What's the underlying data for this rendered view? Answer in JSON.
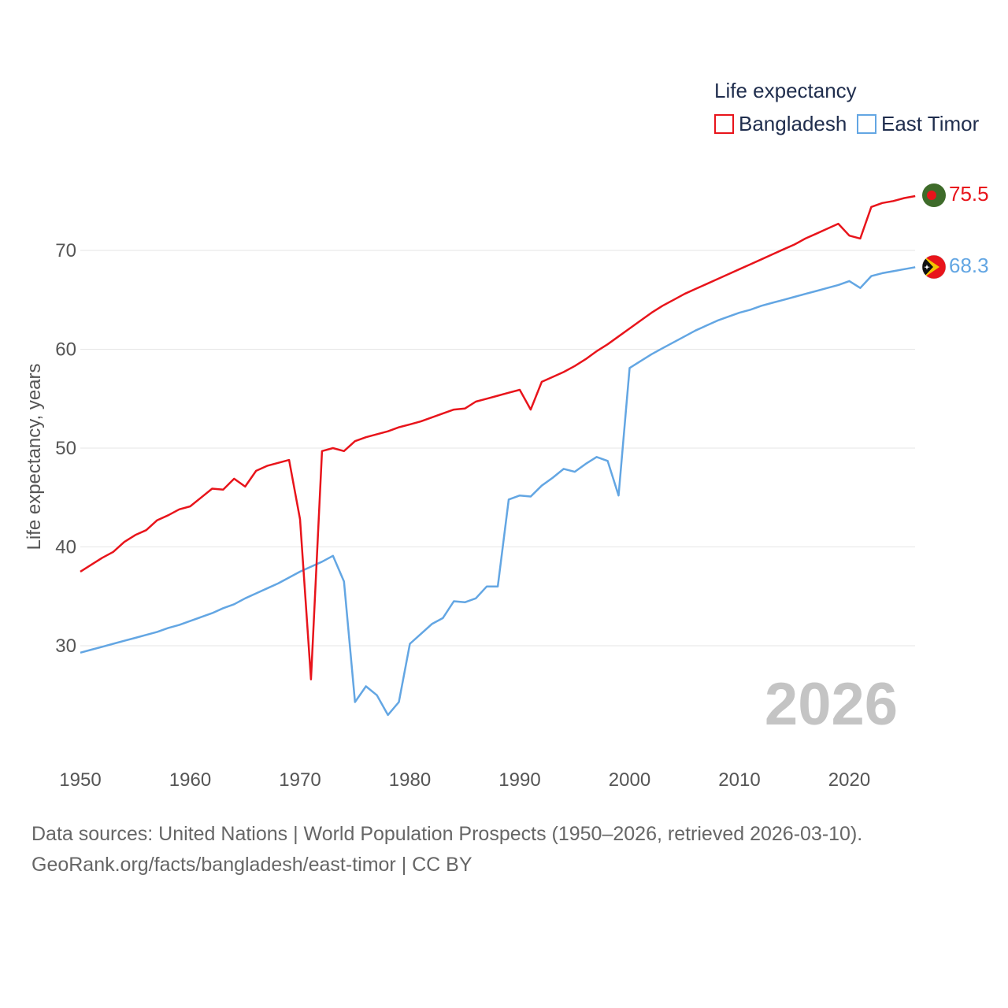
{
  "chart_data": {
    "type": "line",
    "title": "Life expectancy",
    "xlabel": "",
    "ylabel": "Life expectancy, years",
    "xlim": [
      1950,
      2026
    ],
    "ylim": [
      20,
      78
    ],
    "x_ticks": [
      "1950",
      "1960",
      "1970",
      "1980",
      "1990",
      "2000",
      "2010",
      "2020"
    ],
    "y_ticks": [
      "30",
      "40",
      "50",
      "60",
      "70"
    ],
    "grid": true,
    "legend_position": "top-right",
    "year_label": "2026",
    "x": [
      1950,
      1951,
      1952,
      1953,
      1954,
      1955,
      1956,
      1957,
      1958,
      1959,
      1960,
      1961,
      1962,
      1963,
      1964,
      1965,
      1966,
      1967,
      1968,
      1969,
      1970,
      1971,
      1972,
      1973,
      1974,
      1975,
      1976,
      1977,
      1978,
      1979,
      1980,
      1981,
      1982,
      1983,
      1984,
      1985,
      1986,
      1987,
      1988,
      1989,
      1990,
      1991,
      1992,
      1993,
      1994,
      1995,
      1996,
      1997,
      1998,
      1999,
      2000,
      2001,
      2002,
      2003,
      2004,
      2005,
      2006,
      2007,
      2008,
      2009,
      2010,
      2011,
      2012,
      2013,
      2014,
      2015,
      2016,
      2017,
      2018,
      2019,
      2020,
      2021,
      2022,
      2023,
      2024,
      2025,
      2026
    ],
    "series": [
      {
        "name": "Bangladesh",
        "color": "#e8141b",
        "end_label": "75.5",
        "flag": "bangladesh-flag",
        "values": [
          37.5,
          38.2,
          38.9,
          39.5,
          40.5,
          41.2,
          41.7,
          42.7,
          43.2,
          43.8,
          44.1,
          45.0,
          45.9,
          45.8,
          46.9,
          46.1,
          47.7,
          48.2,
          48.5,
          48.8,
          42.8,
          26.6,
          49.7,
          50.0,
          49.7,
          50.7,
          51.1,
          51.4,
          51.7,
          52.1,
          52.4,
          52.7,
          53.1,
          53.5,
          53.9,
          54.0,
          54.7,
          55.0,
          55.3,
          55.6,
          55.9,
          53.9,
          56.7,
          57.2,
          57.7,
          58.3,
          59.0,
          59.8,
          60.5,
          61.3,
          62.1,
          62.9,
          63.7,
          64.4,
          65.0,
          65.6,
          66.1,
          66.6,
          67.1,
          67.6,
          68.1,
          68.6,
          69.1,
          69.6,
          70.1,
          70.6,
          71.2,
          71.7,
          72.2,
          72.7,
          71.5,
          71.2,
          74.4,
          74.8,
          75.0,
          75.3,
          75.5
        ]
      },
      {
        "name": "East Timor",
        "color": "#63a6e3",
        "end_label": "68.3",
        "flag": "east-timor-flag",
        "values": [
          29.3,
          29.6,
          29.9,
          30.2,
          30.5,
          30.8,
          31.1,
          31.4,
          31.8,
          32.1,
          32.5,
          32.9,
          33.3,
          33.8,
          34.2,
          34.8,
          35.3,
          35.8,
          36.3,
          36.9,
          37.5,
          38.0,
          38.5,
          39.1,
          36.5,
          24.3,
          25.9,
          25.0,
          23.0,
          24.3,
          30.2,
          31.2,
          32.2,
          32.8,
          34.5,
          34.4,
          34.8,
          36.0,
          36.0,
          44.8,
          45.2,
          45.1,
          46.2,
          47.0,
          47.9,
          47.6,
          48.4,
          49.1,
          48.7,
          45.2,
          58.1,
          58.8,
          59.5,
          60.1,
          60.7,
          61.3,
          61.9,
          62.4,
          62.9,
          63.3,
          63.7,
          64.0,
          64.4,
          64.7,
          65.0,
          65.3,
          65.6,
          65.9,
          66.2,
          66.5,
          66.9,
          66.2,
          67.4,
          67.7,
          67.9,
          68.1,
          68.3
        ]
      }
    ]
  },
  "footer": {
    "line1": "Data sources: United Nations | World Population Prospects (1950–2026, retrieved 2026-03-10).",
    "line2": "GeoRank.org/facts/bangladesh/east-timor | CC BY"
  }
}
